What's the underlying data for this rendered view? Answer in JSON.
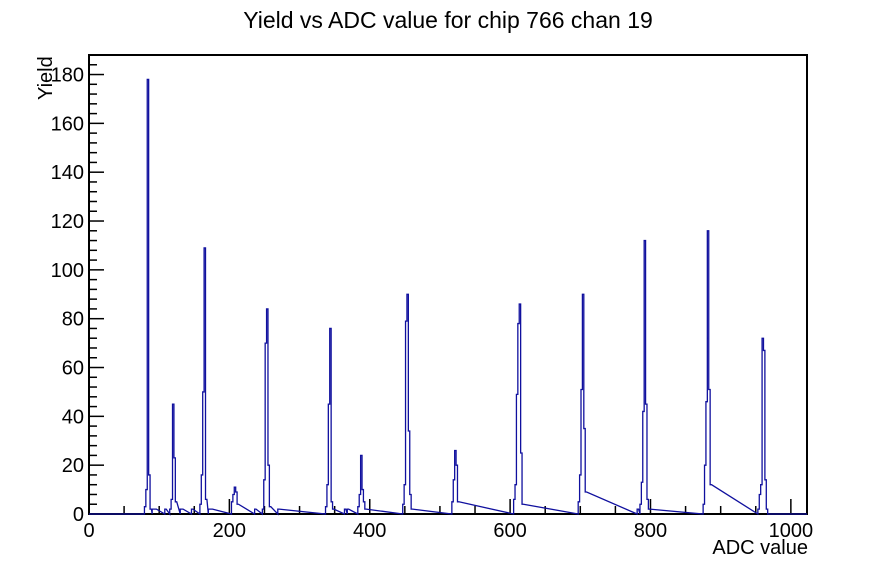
{
  "page": {
    "background": "#ffffff"
  },
  "chart_data": {
    "type": "bar",
    "style": "root-step-histogram",
    "title": "Yield vs ADC value for chip 766 chan 19",
    "xlabel": "ADC value",
    "ylabel": "Yield",
    "xlim": [
      0,
      1023
    ],
    "ylim": [
      0,
      188
    ],
    "x_major_ticks": [
      0,
      200,
      400,
      600,
      800,
      1000
    ],
    "x_minor_step": 50,
    "y_major_ticks": [
      0,
      20,
      40,
      60,
      80,
      100,
      120,
      140,
      160,
      180
    ],
    "y_minor_step": 4,
    "grid": false,
    "legend": false,
    "series_color": "#10109e",
    "axis_color": "#000000",
    "bin_width": 2,
    "bins": [
      [
        80,
        3
      ],
      [
        82,
        10
      ],
      [
        84,
        178
      ],
      [
        86,
        16
      ],
      [
        88,
        2
      ],
      [
        91,
        2
      ],
      [
        93,
        2
      ],
      [
        95,
        2
      ],
      [
        109,
        2
      ],
      [
        116,
        2
      ],
      [
        118,
        6
      ],
      [
        120,
        45
      ],
      [
        122,
        23
      ],
      [
        124,
        5
      ],
      [
        131,
        2
      ],
      [
        133,
        2
      ],
      [
        147,
        2
      ],
      [
        159,
        4
      ],
      [
        161,
        16
      ],
      [
        163,
        50
      ],
      [
        165,
        109
      ],
      [
        167,
        6
      ],
      [
        171,
        2
      ],
      [
        173,
        2
      ],
      [
        175,
        2
      ],
      [
        204,
        5
      ],
      [
        206,
        8
      ],
      [
        208,
        11
      ],
      [
        210,
        9
      ],
      [
        212,
        4
      ],
      [
        237,
        2
      ],
      [
        248,
        2
      ],
      [
        250,
        14
      ],
      [
        252,
        70
      ],
      [
        254,
        84
      ],
      [
        256,
        20
      ],
      [
        258,
        3
      ],
      [
        270,
        2
      ],
      [
        338,
        3
      ],
      [
        340,
        12
      ],
      [
        342,
        45
      ],
      [
        344,
        76
      ],
      [
        346,
        5
      ],
      [
        348,
        2
      ],
      [
        365,
        2
      ],
      [
        369,
        2
      ],
      [
        384,
        3
      ],
      [
        386,
        8
      ],
      [
        388,
        24
      ],
      [
        390,
        10
      ],
      [
        392,
        5
      ],
      [
        394,
        2
      ],
      [
        448,
        4
      ],
      [
        450,
        12
      ],
      [
        452,
        79
      ],
      [
        454,
        90
      ],
      [
        456,
        34
      ],
      [
        458,
        8
      ],
      [
        460,
        2
      ],
      [
        518,
        5
      ],
      [
        520,
        14
      ],
      [
        522,
        26
      ],
      [
        524,
        20
      ],
      [
        526,
        5
      ],
      [
        606,
        6
      ],
      [
        608,
        12
      ],
      [
        610,
        49
      ],
      [
        612,
        78
      ],
      [
        614,
        86
      ],
      [
        616,
        25
      ],
      [
        618,
        4
      ],
      [
        698,
        5
      ],
      [
        700,
        16
      ],
      [
        702,
        51
      ],
      [
        704,
        90
      ],
      [
        706,
        35
      ],
      [
        708,
        9
      ],
      [
        782,
        2
      ],
      [
        786,
        4
      ],
      [
        788,
        13
      ],
      [
        790,
        42
      ],
      [
        792,
        112
      ],
      [
        794,
        45
      ],
      [
        796,
        6
      ],
      [
        798,
        2
      ],
      [
        876,
        4
      ],
      [
        878,
        20
      ],
      [
        880,
        46
      ],
      [
        882,
        116
      ],
      [
        884,
        51
      ],
      [
        886,
        12
      ],
      [
        954,
        2
      ],
      [
        956,
        8
      ],
      [
        958,
        12
      ],
      [
        960,
        72
      ],
      [
        962,
        67
      ],
      [
        964,
        14
      ],
      [
        966,
        2
      ]
    ]
  }
}
